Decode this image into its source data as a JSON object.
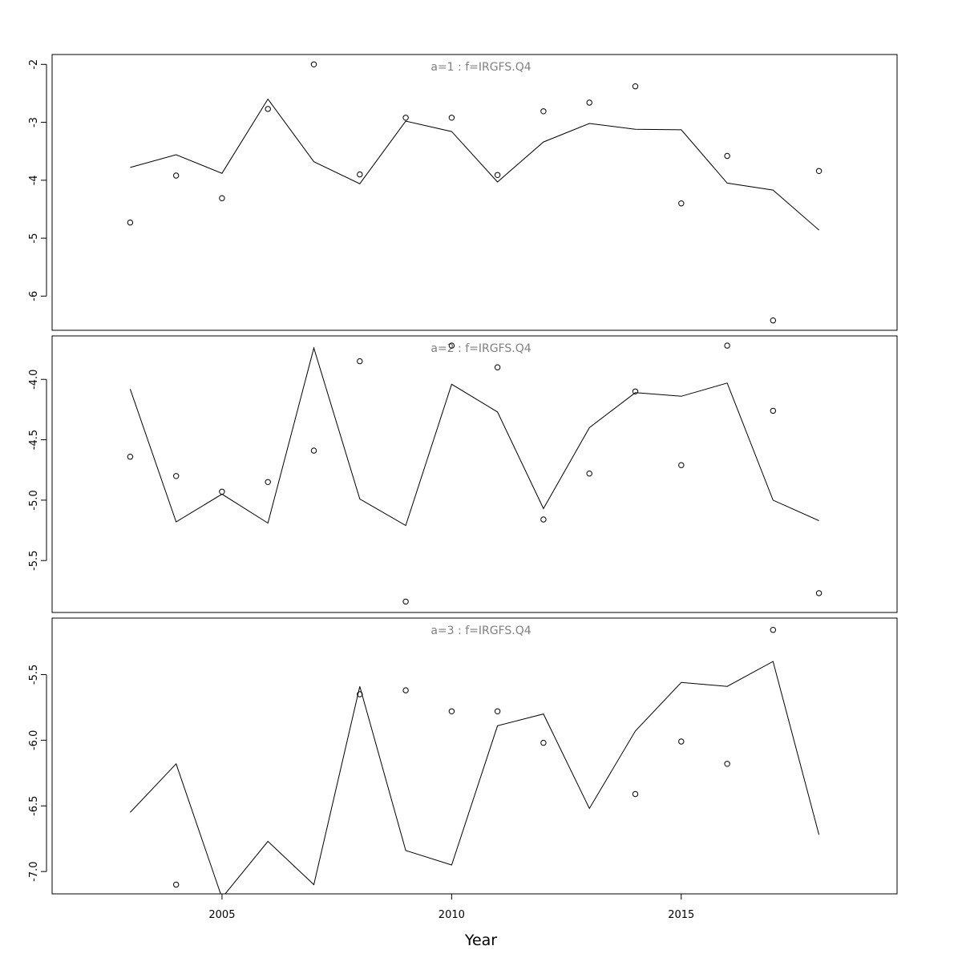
{
  "xlabel": "Year",
  "colors": {
    "line": "#000000",
    "points": "#000000",
    "title": "#808080",
    "frame": "#000000"
  },
  "x_axis": {
    "range": [
      2001.3,
      2019.7
    ],
    "ticks": [
      2005,
      2010,
      2015
    ],
    "tick_labels": [
      "2005",
      "2010",
      "2015"
    ]
  },
  "chart_data": [
    {
      "type": "line",
      "title": "a=1 : f=IRGFS.Q4",
      "ylim": [
        -6.59,
        -1.83
      ],
      "y_ticks": [
        -2,
        -3,
        -4,
        -5,
        -6
      ],
      "y_tick_labels": [
        "-2",
        "-3",
        "-4",
        "-5",
        "-6"
      ],
      "grid": false,
      "series": [
        {
          "kind": "line",
          "x": [
            2003,
            2004,
            2005,
            2006,
            2007,
            2008,
            2009,
            2010,
            2011,
            2012,
            2013,
            2014,
            2015,
            2016,
            2017,
            2018
          ],
          "y": [
            -3.78,
            -3.56,
            -3.88,
            -2.6,
            -3.68,
            -4.06,
            -2.98,
            -3.16,
            -4.03,
            -3.34,
            -3.02,
            -3.12,
            -3.13,
            -4.05,
            -4.17,
            -4.86
          ]
        },
        {
          "kind": "points",
          "x": [
            2003,
            2004,
            2005,
            2006,
            2007,
            2008,
            2009,
            2010,
            2011,
            2012,
            2013,
            2014,
            2015,
            2016,
            2017,
            2018
          ],
          "y": [
            -4.73,
            -3.92,
            -4.31,
            -2.77,
            -2.0,
            -3.9,
            -2.92,
            -2.92,
            -3.91,
            -2.81,
            -2.66,
            -2.38,
            -4.4,
            -3.58,
            -6.42,
            -3.84
          ]
        }
      ]
    },
    {
      "type": "line",
      "title": "a=2 : f=IRGFS.Q4",
      "ylim": [
        -5.93,
        -3.64
      ],
      "y_ticks": [
        -4.0,
        -4.5,
        -5.0,
        -5.5
      ],
      "y_tick_labels": [
        "-4.0",
        "-4.5",
        "-5.0",
        "-5.5"
      ],
      "grid": false,
      "series": [
        {
          "kind": "line",
          "x": [
            2003,
            2004,
            2005,
            2006,
            2007,
            2008,
            2009,
            2010,
            2011,
            2012,
            2013,
            2014,
            2015,
            2016,
            2017,
            2018
          ],
          "y": [
            -4.08,
            -5.18,
            -4.95,
            -5.19,
            -3.74,
            -4.99,
            -5.21,
            -4.04,
            -4.27,
            -5.07,
            -4.4,
            -4.11,
            -4.14,
            -4.03,
            -5.0,
            -5.17
          ]
        },
        {
          "kind": "points",
          "x": [
            2003,
            2004,
            2005,
            2006,
            2007,
            2008,
            2009,
            2010,
            2011,
            2012,
            2013,
            2014,
            2015,
            2016,
            2017,
            2018
          ],
          "y": [
            -4.64,
            -4.8,
            -4.93,
            -4.85,
            -4.59,
            -3.85,
            -5.84,
            -3.72,
            -3.9,
            -5.16,
            -4.78,
            -4.1,
            -4.71,
            -3.72,
            -4.26,
            -5.77
          ]
        }
      ]
    },
    {
      "type": "line",
      "title": "a=3 : f=IRGFS.Q4",
      "ylim": [
        -7.17,
        -5.07
      ],
      "y_ticks": [
        -5.5,
        -6.0,
        -6.5,
        -7.0
      ],
      "y_tick_labels": [
        "-5.5",
        "-6.0",
        "-6.5",
        "-7.0"
      ],
      "grid": false,
      "series": [
        {
          "kind": "line",
          "x": [
            2003,
            2004,
            2005,
            2006,
            2007,
            2008,
            2009,
            2010,
            2011,
            2012,
            2013,
            2014,
            2015,
            2016,
            2017,
            2018
          ],
          "y": [
            -6.55,
            -6.18,
            -7.2,
            -6.77,
            -7.1,
            -5.59,
            -6.84,
            -6.95,
            -5.89,
            -5.8,
            -6.52,
            -5.93,
            -5.56,
            -5.59,
            -5.4,
            -6.72
          ]
        },
        {
          "kind": "points",
          "x": [
            2004,
            2008,
            2009,
            2010,
            2011,
            2012,
            2014,
            2015,
            2016,
            2017
          ],
          "y": [
            -7.1,
            -5.65,
            -5.62,
            -5.78,
            -5.78,
            -6.02,
            -6.41,
            -6.01,
            -6.18,
            -5.16
          ]
        }
      ]
    }
  ]
}
